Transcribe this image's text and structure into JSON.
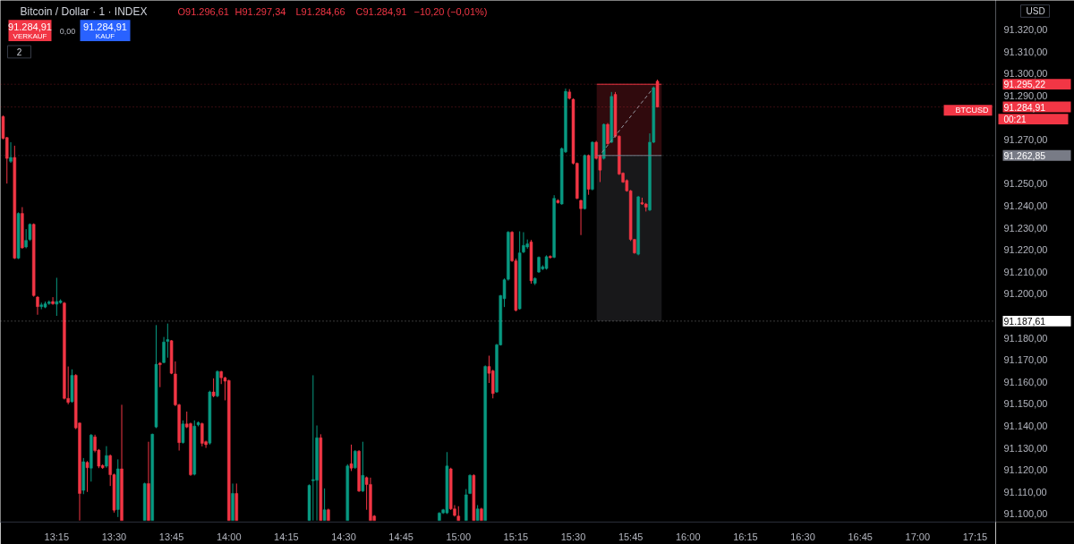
{
  "chart_data": {
    "type": "candlestick",
    "title": "Bitcoin / Dollar · 1 · INDEX",
    "annotations": [
      "O91.296,61",
      "H91.297,34",
      "L91.284,66",
      "C91.284,91",
      "−10,20 (−0,01%)",
      "91.284,91",
      "VERKAUF",
      "0,00",
      "91.284,91",
      "KAUF",
      "2",
      "BTCUSD",
      "00:21",
      "USD"
    ],
    "series": [
      {
        "type": "line",
        "color": "#f23645",
        "x": [
          15.602,
          15.885
        ],
        "values": [
          91295.22,
          91295.22
        ],
        "lower": [
          91262.85,
          91262.85
        ],
        "upper": [
          91295.22,
          91295.22
        ]
      },
      {
        "type": "line",
        "color": "#787b86",
        "x": [
          15.602,
          15.885
        ],
        "values": [
          91262.85,
          91262.85
        ],
        "lower": [
          91187.61,
          91187.61
        ],
        "upper": [
          91262.85,
          91262.85
        ]
      },
      {
        "color": "#089981",
        "x": [
          13.05,
          13.0833,
          13.1167,
          13.1333,
          13.1833,
          13.2,
          13.2167,
          13.25,
          13.2667,
          13.3167,
          13.3667,
          13.4,
          13.4667,
          13.5167,
          13.6333,
          13.6667,
          13.6833,
          13.7167,
          13.7333,
          13.8,
          13.85,
          13.8667,
          13.9167,
          13.95,
          14.0167,
          14.35,
          14.3667,
          14.3833,
          14.4167,
          14.5167,
          14.55,
          14.5833,
          14.9167,
          14.9333,
          14.95,
          15.0333,
          15.05,
          15.0833,
          15.1167,
          15.1667,
          15.1833,
          15.2,
          15.2167,
          15.2667,
          15.2833,
          15.3,
          15.3333,
          15.35,
          15.3667,
          15.3833,
          15.4167,
          15.45,
          15.4667,
          15.55,
          15.5833,
          15.6333,
          15.6667,
          15.7833,
          15.8333,
          15.85
        ],
        "ohlc": [
          [
            91260.2,
            91268.9,
            91259.5,
            91262
          ],
          [
            91216.2,
            91237,
            91215.8,
            91236.5
          ],
          [
            91221.3,
            91229.4,
            91220.7,
            91224.3
          ],
          [
            91224.7,
            91232,
            91224,
            91231.6
          ],
          [
            91194.2,
            91196,
            91193,
            91195
          ],
          [
            91194,
            91196.5,
            91193.5,
            91195.5
          ],
          [
            91195.6,
            91197,
            91195,
            91196.3
          ],
          [
            91195.3,
            91207.3,
            91190,
            91196.5
          ],
          [
            91196,
            91197.5,
            91195.5,
            91196.8
          ],
          [
            91151,
            91165.7,
            91150.5,
            91163
          ],
          [
            91110.7,
            91125.4,
            91109,
            91123.7
          ],
          [
            91120.8,
            91136.3,
            91114.7,
            91135.8
          ],
          [
            91121.7,
            91130.8,
            91121,
            91126.5
          ],
          [
            91102,
            91124.8,
            91098.6,
            91120.5
          ],
          [
            91097,
            91114.2,
            91097,
            91113.8
          ],
          [
            91097,
            91136.5,
            91097,
            91136.2
          ],
          [
            91139.5,
            91185.8,
            91139,
            91168
          ],
          [
            91168.8,
            91180.4,
            91168.5,
            91178.1
          ],
          [
            91178.4,
            91186.5,
            91171,
            91179.2
          ],
          [
            91132.4,
            91142.5,
            91132,
            91140.9
          ],
          [
            91118,
            91142.5,
            91117.5,
            91139.9
          ],
          [
            91140.5,
            91142,
            91139.8,
            91141.5
          ],
          [
            91132.2,
            91156,
            91131.5,
            91155.4
          ],
          [
            91153.6,
            91165.2,
            91153,
            91164.7
          ],
          [
            91097,
            91113.8,
            91097,
            91109.3
          ],
          [
            91097,
            91113.4,
            91097,
            91113
          ],
          [
            91115.1,
            91163,
            91097,
            91115.6
          ],
          [
            91115.3,
            91140.2,
            91097,
            91134.6
          ],
          [
            91097,
            91111.6,
            91097,
            91101.9
          ],
          [
            91097,
            91122.6,
            91097,
            91121.8
          ],
          [
            91121,
            91129,
            91120.5,
            91128.5
          ],
          [
            91110.4,
            91132.8,
            91110,
            91117.5
          ],
          [
            91097,
            91100.8,
            91097,
            91100.4
          ],
          [
            91100.5,
            91102.3,
            91100,
            91101.9
          ],
          [
            91100.5,
            91128.1,
            91100,
            91121.8
          ],
          [
            91097,
            91111.3,
            91097,
            91108.7
          ],
          [
            91109.3,
            91118,
            91109,
            91117.5
          ],
          [
            91097,
            91104,
            91097,
            91102.3
          ],
          [
            91097,
            91167.5,
            91097,
            91167
          ],
          [
            91155.4,
            91177.3,
            91155,
            91176.8
          ],
          [
            91176.8,
            91199.5,
            91176.5,
            91199.2
          ],
          [
            91197.8,
            91207,
            91194,
            91206.4
          ],
          [
            91206.6,
            91228.5,
            91206,
            91228
          ],
          [
            91193.2,
            91228.4,
            91192.8,
            91218.6
          ],
          [
            91219,
            91228,
            91218.5,
            91222
          ],
          [
            91221.3,
            91224.7,
            91220.5,
            91222.7
          ],
          [
            91204.8,
            91207.5,
            91204,
            91207
          ],
          [
            91209.9,
            91217,
            91209.5,
            91216.6
          ],
          [
            91211.3,
            91213,
            91210.8,
            91212.3
          ],
          [
            91211.5,
            91217.5,
            91211,
            91216.9
          ],
          [
            91216.6,
            91244.8,
            91216.2,
            91243.4
          ],
          [
            91240.8,
            91266.5,
            91240.5,
            91266
          ],
          [
            91264.5,
            91293.3,
            91264,
            91292
          ],
          [
            91238.7,
            91263.3,
            91238.3,
            91262.9
          ],
          [
            91247.5,
            91269.3,
            91247,
            91268.9
          ],
          [
            91261.5,
            91277.4,
            91261,
            91277
          ],
          [
            91268.9,
            91291.7,
            91268.5,
            91289.7
          ],
          [
            91218,
            91244.5,
            91217.5,
            91244.1
          ],
          [
            91238.1,
            91272.9,
            91237.6,
            91268.9
          ],
          [
            91268.9,
            91294.2,
            91268.5,
            91293.7
          ]
        ]
      },
      {
        "color": "#f23645",
        "x": [
          13.0167,
          13.0333,
          13.0667,
          13.1,
          13.15,
          13.1667,
          13.2333,
          13.2833,
          13.3,
          13.3333,
          13.35,
          13.3833,
          13.4167,
          13.4333,
          13.45,
          13.4833,
          13.5,
          13.5333,
          13.65,
          13.7,
          13.75,
          13.7667,
          13.7833,
          13.8167,
          13.8333,
          13.8833,
          13.9,
          13.9333,
          13.9667,
          13.9833,
          14.0,
          14.0333,
          14.4,
          14.4333,
          14.5333,
          14.5667,
          14.6,
          14.6167,
          14.6333,
          14.9667,
          14.9833,
          15.0,
          15.0667,
          15.1,
          15.1333,
          15.15,
          15.2333,
          15.25,
          15.3167,
          15.4,
          15.4333,
          15.4833,
          15.5,
          15.5167,
          15.5333,
          15.5667,
          15.6,
          15.6167,
          15.65,
          15.6833,
          15.7,
          15.7167,
          15.7333,
          15.75,
          15.7667,
          15.8,
          15.8167,
          15.8667
        ],
        "ohlc": [
          [
            91280.6,
            91281,
            91270.2,
            91270.6
          ],
          [
            91271,
            91271.3,
            91250.1,
            91261.5
          ],
          [
            91262,
            91267.3,
            91215.8,
            91216.2
          ],
          [
            91236.5,
            91239.4,
            91220.5,
            91220.9
          ],
          [
            91231.6,
            91232,
            91198.7,
            91199.2
          ],
          [
            91198.5,
            91199,
            91190.5,
            91194.2
          ],
          [
            91196.5,
            91198.5,
            91195,
            91195.5
          ],
          [
            91195.8,
            91196.3,
            91152,
            91152.5
          ],
          [
            91152.5,
            91167,
            91149.8,
            91150.7
          ],
          [
            91163,
            91163.5,
            91138.5,
            91139.1
          ],
          [
            91141.3,
            91141.5,
            91097,
            91109.3
          ],
          [
            91123.4,
            91124,
            91110,
            91121
          ],
          [
            91135,
            91136,
            91128,
            91128.8
          ],
          [
            91129,
            91129.5,
            91120.8,
            91121.7
          ],
          [
            91122,
            91122.5,
            91120.5,
            91121
          ],
          [
            91126.5,
            91127,
            91112.7,
            91117.8
          ],
          [
            91117.8,
            91118.3,
            91100.6,
            91101.7
          ],
          [
            91120.5,
            91149.6,
            91097,
            91097
          ],
          [
            91113.8,
            91132.8,
            91097,
            91097
          ],
          [
            91168.5,
            91169,
            91157.6,
            91167.8
          ],
          [
            91178.7,
            91179,
            91163.5,
            91163.9
          ],
          [
            91163.6,
            91169.3,
            91149,
            91149.6
          ],
          [
            91149.6,
            91150,
            91128.8,
            91132.4
          ],
          [
            91140.9,
            91146.5,
            91139,
            91139.5
          ],
          [
            91141,
            91141.5,
            91117.3,
            91117.8
          ],
          [
            91141,
            91141.5,
            91130.7,
            91132.1
          ],
          [
            91132.8,
            91133.3,
            91130,
            91131.5
          ],
          [
            91155.4,
            91161.6,
            91153,
            91153.6
          ],
          [
            91164.7,
            91165,
            91159,
            91161.9
          ],
          [
            91161.9,
            91162.3,
            91151.6,
            91160.3
          ],
          [
            91160.6,
            91161,
            91097,
            91097
          ],
          [
            91109.3,
            91113.8,
            91097,
            91097
          ],
          [
            91134.6,
            91136.2,
            91097,
            91097
          ],
          [
            91101.9,
            91102.4,
            91097,
            91097
          ],
          [
            91122.8,
            91131.5,
            91119.5,
            91120.8
          ],
          [
            91128.5,
            91129,
            91110,
            91110.4
          ],
          [
            91116.5,
            91117,
            91101.9,
            91113.4
          ],
          [
            91113.4,
            91116.5,
            91097,
            91097
          ],
          [
            91099,
            91099.5,
            91097,
            91097
          ],
          [
            91120.5,
            91121,
            91101.8,
            91102.3
          ],
          [
            91102.3,
            91104,
            91098.8,
            91099.3
          ],
          [
            91099,
            91103.5,
            91097,
            91097
          ],
          [
            91117.5,
            91118,
            91097,
            91097
          ],
          [
            91102.3,
            91102.8,
            91097,
            91097
          ],
          [
            91167,
            91171.9,
            91159.5,
            91163.9
          ],
          [
            91165,
            91165.5,
            91152.5,
            91154.7
          ],
          [
            91228,
            91228.5,
            91214.5,
            91215
          ],
          [
            91215,
            91216,
            91192,
            91192.5
          ],
          [
            91223.6,
            91224.5,
            91204.6,
            91205.9
          ],
          [
            91217,
            91217.5,
            91216,
            91216.5
          ],
          [
            91242.4,
            91243,
            91241,
            91241.4
          ],
          [
            91291.7,
            91293,
            91288.3,
            91288.8
          ],
          [
            91288.4,
            91288.8,
            91258.8,
            91259.3
          ],
          [
            91259.3,
            91259.7,
            91243,
            91243.4
          ],
          [
            91242.4,
            91242.8,
            91226.7,
            91238.7
          ],
          [
            91262.9,
            91263.3,
            91245,
            91247.5
          ],
          [
            91268.9,
            91269.5,
            91261,
            91261.5
          ],
          [
            91262.9,
            91263.3,
            91250.8,
            91256.2
          ],
          [
            91277,
            91277.6,
            91267.8,
            91268.2
          ],
          [
            91290.6,
            91291.7,
            91271,
            91271.6
          ],
          [
            91271.6,
            91272,
            91254,
            91254.4
          ],
          [
            91254.8,
            91255.2,
            91250.4,
            91250.8
          ],
          [
            91251.5,
            91252,
            91246.4,
            91246.8
          ],
          [
            91246.8,
            91247.2,
            91224,
            91224.7
          ],
          [
            91224.7,
            91225,
            91218.2,
            91218.6
          ],
          [
            91241.4,
            91243.7,
            91240.4,
            91240.8
          ],
          [
            91240.8,
            91241.3,
            91237.4,
            91239.4
          ],
          [
            91296.61,
            91297.34,
            91284.66,
            91284.91
          ]
        ]
      },
      {
        "type": "line",
        "color": "#9598a1",
        "line_style": "dashed",
        "x": [
          15.625,
          15.847
        ],
        "values": [
          91264.2,
          91293.3
        ]
      }
    ],
    "ref_lines": [
      {
        "axis": "y",
        "value": 91284.91,
        "label": "91.284,91",
        "color": "#f23645",
        "line_style": "dotted"
      },
      {
        "axis": "y",
        "value": 91295.22,
        "label": "91.295,22",
        "color": "#f23645",
        "line_style": "dotted"
      },
      {
        "axis": "y",
        "value": 91262.85,
        "label": "91.262,85",
        "color": "#787b86",
        "line_style": "dotted"
      },
      {
        "axis": "y",
        "value": 91187.61,
        "label": "91.187,61",
        "color": "#ffffff",
        "line_style": "dotted"
      }
    ],
    "xlim": [
      13.005,
      17.34
    ],
    "ylim": [
      91096.3,
      91333.3
    ],
    "xticks": [
      {
        "value": 13.25,
        "label": "13:15"
      },
      {
        "value": 13.5,
        "label": "13:30"
      },
      {
        "value": 13.75,
        "label": "13:45"
      },
      {
        "value": 14,
        "label": "14:00"
      },
      {
        "value": 14.25,
        "label": "14:15"
      },
      {
        "value": 14.5,
        "label": "14:30"
      },
      {
        "value": 14.75,
        "label": "14:45"
      },
      {
        "value": 15,
        "label": "15:00"
      },
      {
        "value": 15.25,
        "label": "15:15"
      },
      {
        "value": 15.5,
        "label": "15:30"
      },
      {
        "value": 15.75,
        "label": "15:45"
      },
      {
        "value": 16,
        "label": "16:00"
      },
      {
        "value": 16.25,
        "label": "16:15"
      },
      {
        "value": 16.5,
        "label": "16:30"
      },
      {
        "value": 16.75,
        "label": "16:45"
      },
      {
        "value": 17,
        "label": "17:00"
      },
      {
        "value": 17.25,
        "label": "17:15"
      }
    ],
    "yticks": [
      {
        "value": 91100,
        "label": "91.100,00"
      },
      {
        "value": 91110,
        "label": "91.110,00"
      },
      {
        "value": 91120,
        "label": "91.120,00"
      },
      {
        "value": 91130,
        "label": "91.130,00"
      },
      {
        "value": 91140,
        "label": "91.140,00"
      },
      {
        "value": 91150,
        "label": "91.150,00"
      },
      {
        "value": 91160,
        "label": "91.160,00"
      },
      {
        "value": 91170,
        "label": "91.170,00"
      },
      {
        "value": 91180,
        "label": "91.180,00"
      },
      {
        "value": 91200,
        "label": "91.200,00"
      },
      {
        "value": 91210,
        "label": "91.210,00"
      },
      {
        "value": 91220,
        "label": "91.220,00"
      },
      {
        "value": 91230,
        "label": "91.230,00"
      },
      {
        "value": 91240,
        "label": "91.240,00"
      },
      {
        "value": 91250,
        "label": "91.250,00"
      },
      {
        "value": 91270,
        "label": "91.270,00"
      },
      {
        "value": 91290,
        "label": "91.290,00"
      },
      {
        "value": 91300,
        "label": "91.300,00"
      },
      {
        "value": 91310,
        "label": "91.310,00"
      },
      {
        "value": 91320,
        "label": "91.320,00"
      }
    ],
    "grid": false
  }
}
